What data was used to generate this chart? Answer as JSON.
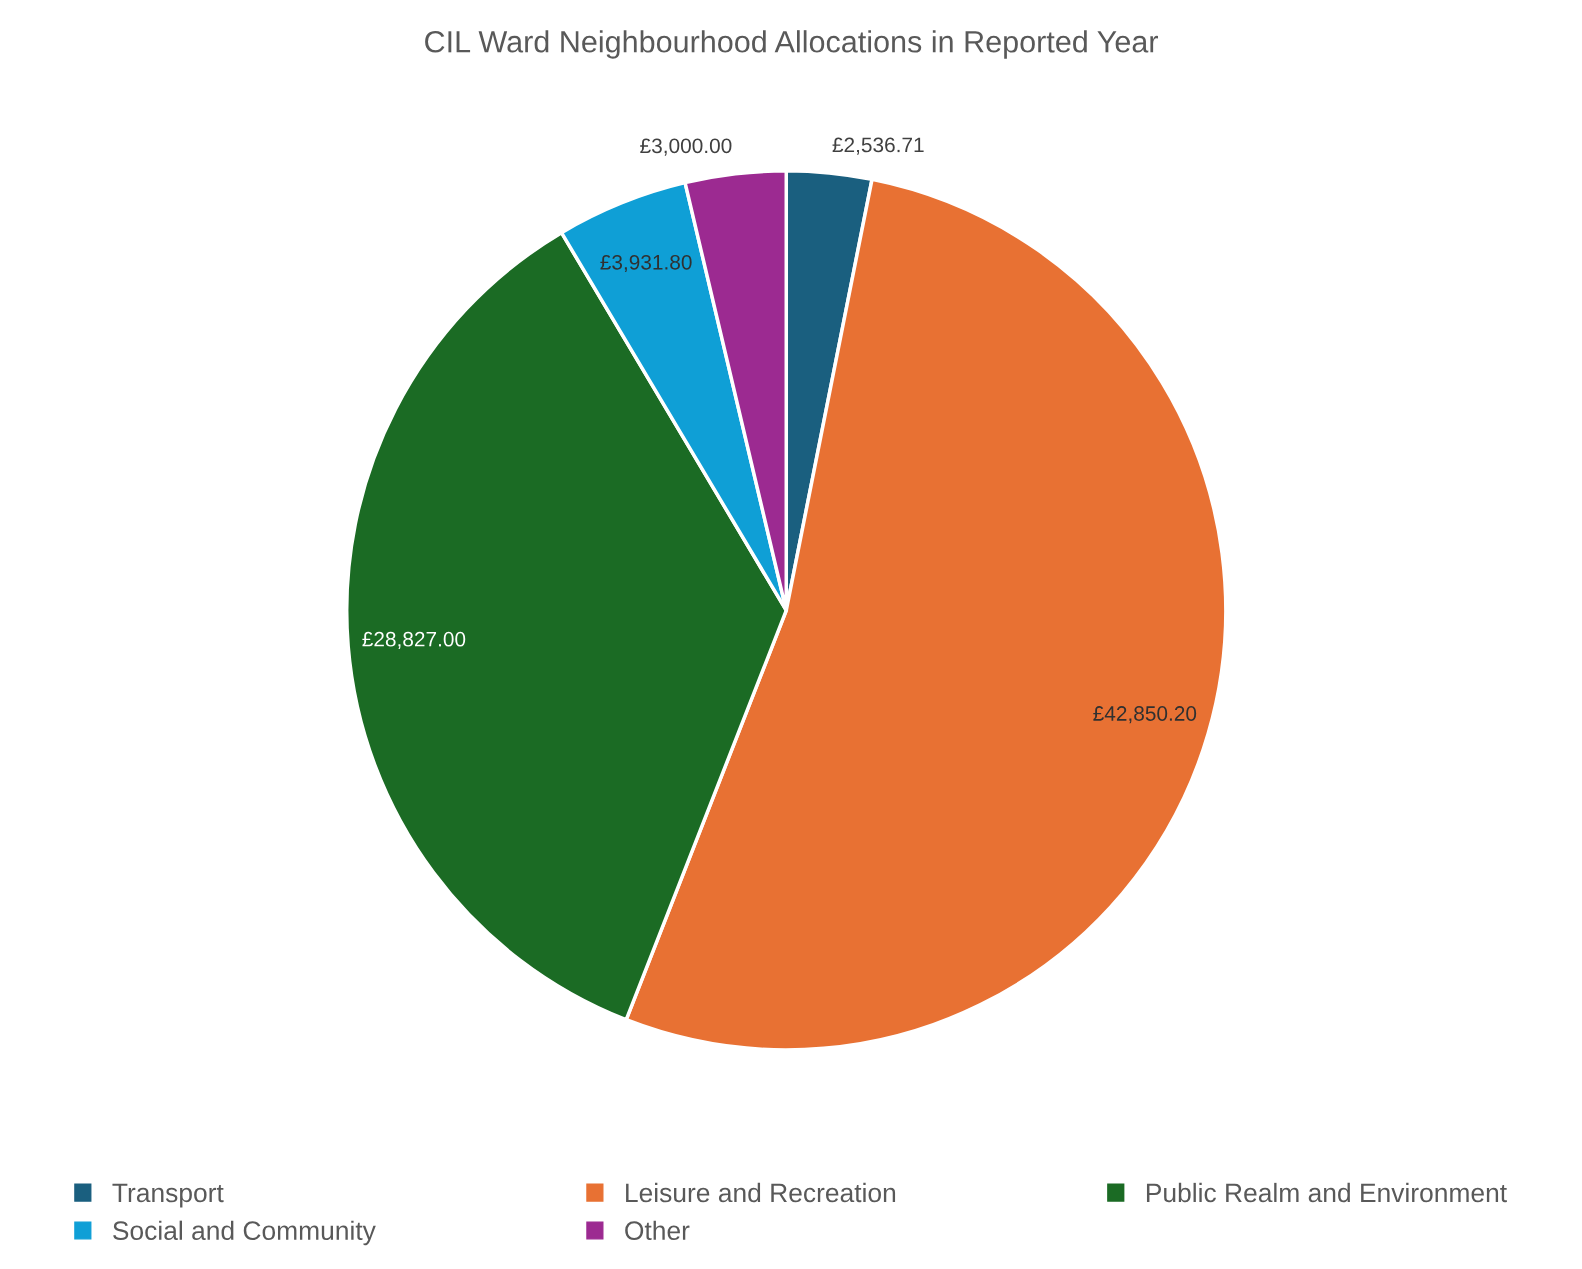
{
  "chart_data": {
    "type": "pie",
    "title": "CIL Ward Neighbourhood Allocations in Reported Year",
    "categories": [
      "Transport",
      "Leisure and Recreation",
      "Public Realm and Environment",
      "Social and Community",
      "Other"
    ],
    "values": [
      2536.71,
      42850.2,
      28827,
      3931.8,
      3000
    ],
    "colors": [
      "#1a5f7f",
      "#e87133",
      "#1b6b24",
      "#0f9fd6",
      "#9c2a91"
    ],
    "value_labels": [
      "£2,536.71",
      "£42,850.20",
      "£28,827.00",
      "£3,931.80",
      "£3,000.00"
    ],
    "legend": "bottom"
  }
}
